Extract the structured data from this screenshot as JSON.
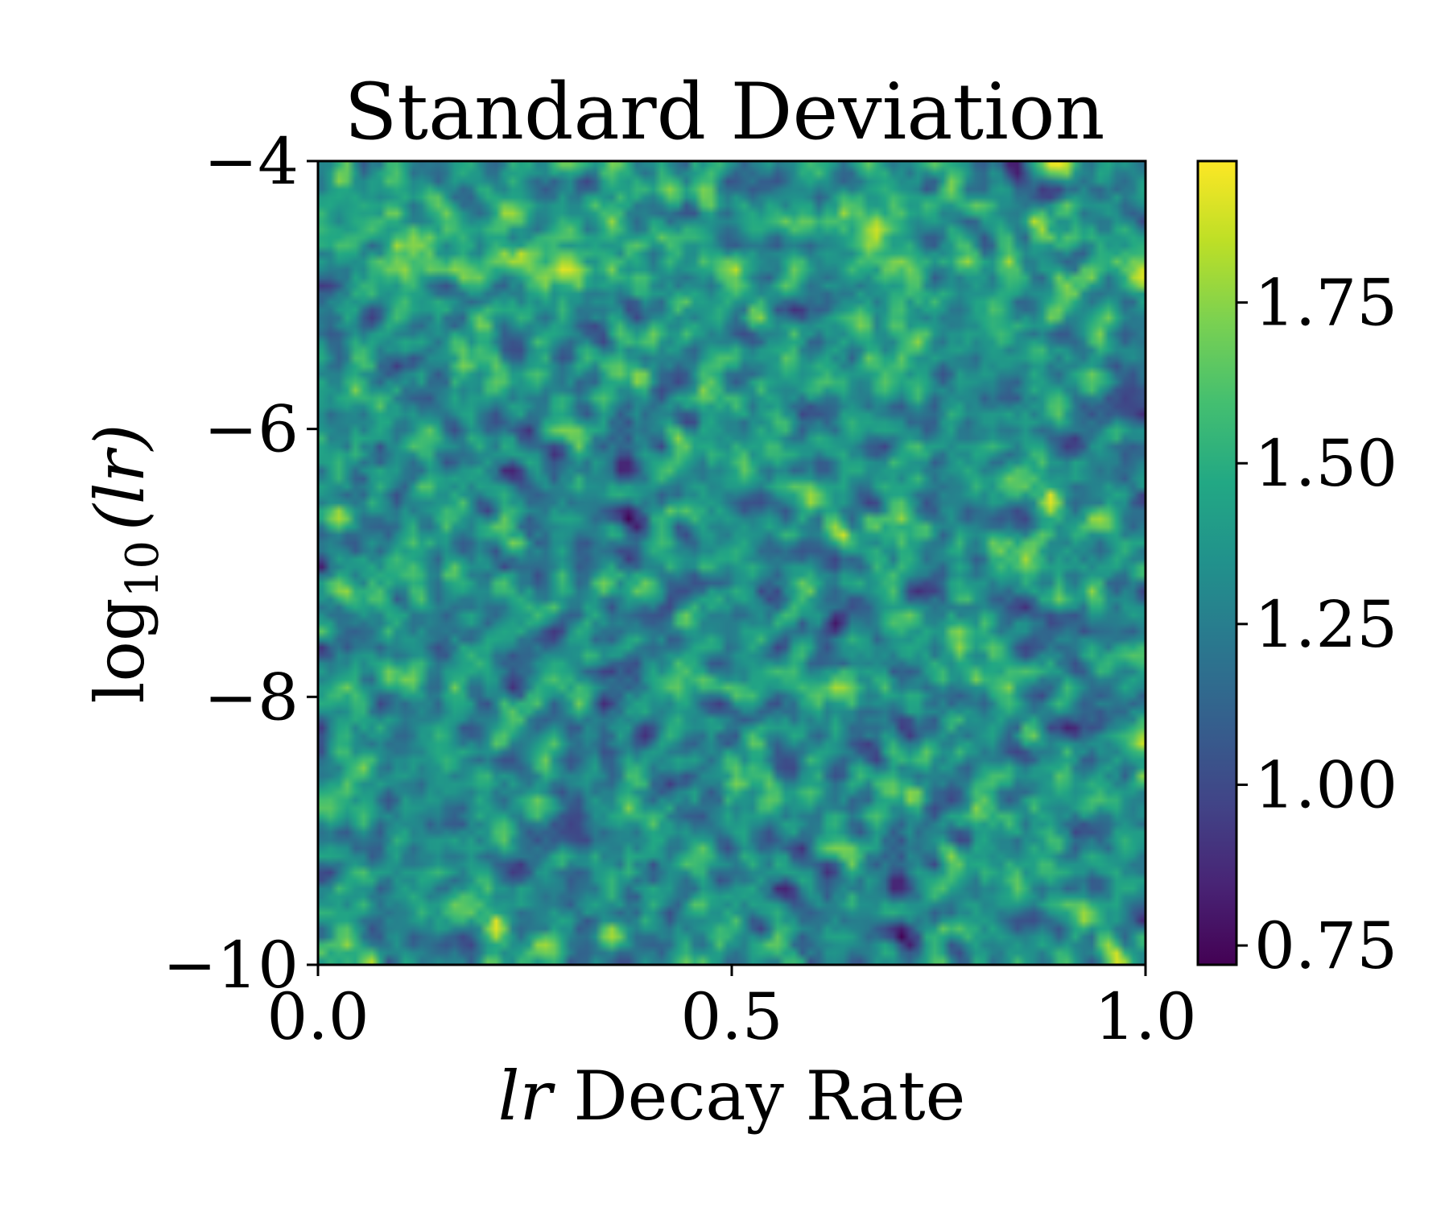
{
  "chart_data": {
    "type": "heatmap",
    "title": "Standard Deviation",
    "xlabel_italic": "lr",
    "xlabel_rest": " Decay Rate",
    "ylabel_main": "log",
    "ylabel_sub": "10",
    "ylabel_arg": "(lr)",
    "xlim": [
      0.0,
      1.0
    ],
    "ylim": [
      -10,
      -4
    ],
    "x_ticks": [
      {
        "value": 0.0,
        "label": "0.0"
      },
      {
        "value": 0.5,
        "label": "0.5"
      },
      {
        "value": 1.0,
        "label": "1.0"
      }
    ],
    "y_ticks": [
      {
        "value": -4,
        "label": "−4"
      },
      {
        "value": -6,
        "label": "−6"
      },
      {
        "value": -8,
        "label": "−8"
      },
      {
        "value": -10,
        "label": "−10"
      }
    ],
    "colorbar": {
      "colormap": "viridis",
      "min": 0.72,
      "max": 1.97,
      "ticks": [
        {
          "value": 0.75,
          "label": "0.75"
        },
        {
          "value": 1.0,
          "label": "1.00"
        },
        {
          "value": 1.25,
          "label": "1.25"
        },
        {
          "value": 1.5,
          "label": "1.50"
        },
        {
          "value": 1.75,
          "label": "1.75"
        }
      ]
    },
    "grid": {
      "nx": 100,
      "ny": 100,
      "mean": 1.33,
      "std": 0.16,
      "pattern": "speckled noise, slightly brighter band near top (log10 lr ≈ -4.5 to -5.5)"
    }
  }
}
